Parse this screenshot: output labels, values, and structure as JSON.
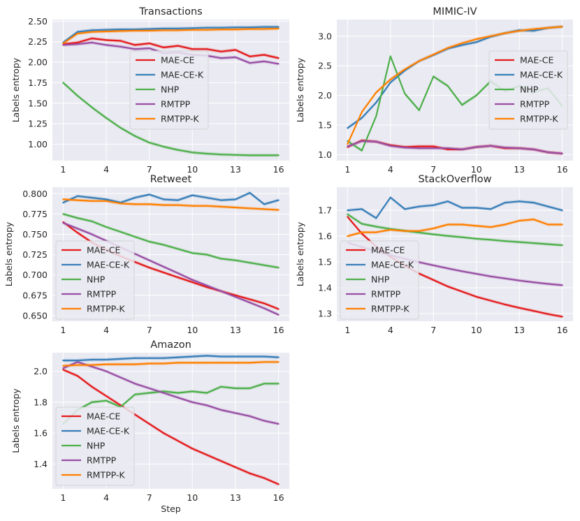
{
  "figure": {
    "palette": {
      "MAE-CE": "#e41a1c",
      "MAE-CE-K": "#377eb8",
      "NHP": "#4daf4a",
      "RMTPP": "#984ea3",
      "RMTPP-K": "#ff7f00"
    },
    "background": "#eaeaf2"
  },
  "chart_data": [
    {
      "type": "line",
      "title": "Transactions",
      "xlabel": "",
      "ylabel": "Labels entropy",
      "xlim": [
        0.25,
        16.75
      ],
      "ylim": [
        0.8,
        2.52
      ],
      "x": [
        1,
        2,
        3,
        4,
        5,
        6,
        7,
        8,
        9,
        10,
        11,
        12,
        13,
        14,
        15,
        16
      ],
      "xticks": [
        "1",
        "4",
        "7",
        "10",
        "13",
        "16"
      ],
      "xtick_values": [
        1,
        4,
        7,
        10,
        13,
        16
      ],
      "yticks": [
        "1.00",
        "1.25",
        "1.50",
        "1.75",
        "2.00",
        "2.25",
        "2.50"
      ],
      "ytick_values": [
        1.0,
        1.25,
        1.5,
        1.75,
        2.0,
        2.25,
        2.5
      ],
      "legend": "center",
      "series": [
        {
          "name": "MAE-CE",
          "values": [
            2.22,
            2.24,
            2.29,
            2.27,
            2.26,
            2.21,
            2.23,
            2.18,
            2.2,
            2.16,
            2.16,
            2.13,
            2.15,
            2.07,
            2.09,
            2.05
          ]
        },
        {
          "name": "MAE-CE-K",
          "values": [
            2.24,
            2.37,
            2.39,
            2.395,
            2.4,
            2.4,
            2.405,
            2.41,
            2.41,
            2.415,
            2.42,
            2.42,
            2.425,
            2.425,
            2.43,
            2.43
          ]
        },
        {
          "name": "NHP",
          "values": [
            1.75,
            1.59,
            1.45,
            1.32,
            1.2,
            1.1,
            1.02,
            0.97,
            0.93,
            0.9,
            0.885,
            0.875,
            0.87,
            0.865,
            0.865,
            0.865
          ]
        },
        {
          "name": "RMTPP",
          "values": [
            2.21,
            2.22,
            2.24,
            2.21,
            2.19,
            2.16,
            2.17,
            2.11,
            2.12,
            2.09,
            2.08,
            2.05,
            2.06,
            1.99,
            2.01,
            1.98
          ]
        },
        {
          "name": "RMTPP-K",
          "values": [
            2.23,
            2.35,
            2.37,
            2.375,
            2.38,
            2.385,
            2.385,
            2.39,
            2.39,
            2.395,
            2.395,
            2.4,
            2.4,
            2.405,
            2.405,
            2.41
          ]
        }
      ]
    },
    {
      "type": "line",
      "title": "MIMIC-IV",
      "xlabel": "",
      "ylabel": "Labels entropy",
      "xlim": [
        0.25,
        16.75
      ],
      "ylim": [
        0.9,
        3.28
      ],
      "x": [
        1,
        2,
        3,
        4,
        5,
        6,
        7,
        8,
        9,
        10,
        11,
        12,
        13,
        14,
        15,
        16
      ],
      "xticks": [
        "1",
        "4",
        "7",
        "10",
        "13",
        "16"
      ],
      "xtick_values": [
        1,
        4,
        7,
        10,
        13,
        16
      ],
      "yticks": [
        "1.0",
        "1.5",
        "2.0",
        "2.5",
        "3.0"
      ],
      "ytick_values": [
        1.0,
        1.5,
        2.0,
        2.5,
        3.0
      ],
      "legend": "center right",
      "series": [
        {
          "name": "MAE-CE",
          "values": [
            1.13,
            1.24,
            1.22,
            1.16,
            1.13,
            1.14,
            1.14,
            1.09,
            1.09,
            1.13,
            1.15,
            1.11,
            1.11,
            1.09,
            1.04,
            1.02
          ]
        },
        {
          "name": "MAE-CE-K",
          "values": [
            1.45,
            1.62,
            1.88,
            2.22,
            2.42,
            2.58,
            2.68,
            2.79,
            2.85,
            2.9,
            2.99,
            3.05,
            3.1,
            3.09,
            3.14,
            3.16
          ]
        },
        {
          "name": "NHP",
          "values": [
            1.23,
            1.07,
            1.65,
            2.66,
            2.03,
            1.75,
            2.32,
            2.16,
            1.84,
            2.0,
            2.24,
            2.07,
            2.16,
            2.06,
            2.12,
            1.82
          ]
        },
        {
          "name": "RMTPP",
          "values": [
            1.14,
            1.23,
            1.22,
            1.15,
            1.12,
            1.11,
            1.11,
            1.11,
            1.09,
            1.13,
            1.15,
            1.12,
            1.11,
            1.09,
            1.04,
            1.02
          ]
        },
        {
          "name": "RMTPP-K",
          "values": [
            1.18,
            1.72,
            2.05,
            2.27,
            2.44,
            2.58,
            2.69,
            2.8,
            2.88,
            2.95,
            3.0,
            3.05,
            3.09,
            3.12,
            3.14,
            3.16
          ]
        }
      ]
    },
    {
      "type": "line",
      "title": "Retweet",
      "xlabel": "",
      "ylabel": "Labels entropy",
      "xlim": [
        0.25,
        16.75
      ],
      "ylim": [
        0.643,
        0.808
      ],
      "x": [
        1,
        2,
        3,
        4,
        5,
        6,
        7,
        8,
        9,
        10,
        11,
        12,
        13,
        14,
        15,
        16
      ],
      "xticks": [
        "1",
        "4",
        "7",
        "10",
        "13",
        "16"
      ],
      "xtick_values": [
        1,
        4,
        7,
        10,
        13,
        16
      ],
      "yticks": [
        "0.650",
        "0.675",
        "0.700",
        "0.725",
        "0.750",
        "0.775",
        "0.800"
      ],
      "ytick_values": [
        0.65,
        0.675,
        0.7,
        0.725,
        0.75,
        0.775,
        0.8
      ],
      "legend": "lower left",
      "series": [
        {
          "name": "MAE-CE",
          "values": [
            0.765,
            0.752,
            0.74,
            0.731,
            0.723,
            0.716,
            0.709,
            0.703,
            0.697,
            0.691,
            0.685,
            0.68,
            0.675,
            0.67,
            0.665,
            0.658
          ]
        },
        {
          "name": "MAE-CE-K",
          "values": [
            0.789,
            0.797,
            0.795,
            0.793,
            0.789,
            0.795,
            0.799,
            0.793,
            0.792,
            0.798,
            0.795,
            0.792,
            0.793,
            0.801,
            0.787,
            0.792
          ]
        },
        {
          "name": "NHP",
          "values": [
            0.775,
            0.77,
            0.766,
            0.759,
            0.753,
            0.747,
            0.741,
            0.737,
            0.732,
            0.727,
            0.725,
            0.72,
            0.718,
            0.715,
            0.712,
            0.709
          ]
        },
        {
          "name": "RMTPP",
          "values": [
            0.764,
            0.757,
            0.75,
            0.742,
            0.734,
            0.726,
            0.718,
            0.71,
            0.702,
            0.694,
            0.687,
            0.68,
            0.673,
            0.666,
            0.659,
            0.651
          ]
        },
        {
          "name": "RMTPP-K",
          "values": [
            0.793,
            0.792,
            0.791,
            0.791,
            0.788,
            0.787,
            0.787,
            0.786,
            0.786,
            0.785,
            0.785,
            0.784,
            0.783,
            0.782,
            0.781,
            0.78
          ]
        }
      ]
    },
    {
      "type": "line",
      "title": "StackOverflow",
      "xlabel": "",
      "ylabel": "Labels entropy",
      "xlim": [
        0.25,
        16.75
      ],
      "ylim": [
        1.27,
        1.79
      ],
      "x": [
        1,
        2,
        3,
        4,
        5,
        6,
        7,
        8,
        9,
        10,
        11,
        12,
        13,
        14,
        15,
        16
      ],
      "xticks": [
        "1",
        "4",
        "7",
        "10",
        "13",
        "16"
      ],
      "xtick_values": [
        1,
        4,
        7,
        10,
        13,
        16
      ],
      "yticks": [
        "1.3",
        "1.4",
        "1.5",
        "1.6",
        "1.7"
      ],
      "ytick_values": [
        1.3,
        1.4,
        1.5,
        1.6,
        1.7
      ],
      "legend": "lower left",
      "series": [
        {
          "name": "MAE-CE",
          "values": [
            1.675,
            1.61,
            1.56,
            1.52,
            1.485,
            1.455,
            1.43,
            1.405,
            1.385,
            1.365,
            1.35,
            1.335,
            1.322,
            1.31,
            1.298,
            1.288
          ]
        },
        {
          "name": "MAE-CE-K",
          "values": [
            1.7,
            1.705,
            1.67,
            1.75,
            1.705,
            1.715,
            1.72,
            1.735,
            1.71,
            1.71,
            1.705,
            1.73,
            1.735,
            1.73,
            1.715,
            1.7
          ]
        },
        {
          "name": "NHP",
          "values": [
            1.685,
            1.648,
            1.637,
            1.628,
            1.621,
            1.614,
            1.607,
            1.601,
            1.596,
            1.59,
            1.586,
            1.581,
            1.577,
            1.573,
            1.569,
            1.565
          ]
        },
        {
          "name": "RMTPP",
          "values": [
            1.575,
            1.558,
            1.541,
            1.526,
            1.512,
            1.499,
            1.487,
            1.475,
            1.464,
            1.454,
            1.444,
            1.436,
            1.428,
            1.421,
            1.415,
            1.41
          ]
        },
        {
          "name": "RMTPP-K",
          "values": [
            1.6,
            1.615,
            1.615,
            1.625,
            1.62,
            1.62,
            1.63,
            1.645,
            1.645,
            1.64,
            1.635,
            1.645,
            1.66,
            1.665,
            1.645,
            1.645
          ]
        }
      ]
    },
    {
      "type": "line",
      "title": "Amazon",
      "xlabel": "Step",
      "ylabel": "Labels entropy",
      "xlim": [
        0.25,
        16.75
      ],
      "ylim": [
        1.24,
        2.12
      ],
      "x": [
        1,
        2,
        3,
        4,
        5,
        6,
        7,
        8,
        9,
        10,
        11,
        12,
        13,
        14,
        15,
        16
      ],
      "xticks": [
        "1",
        "4",
        "7",
        "10",
        "13",
        "16"
      ],
      "xtick_values": [
        1,
        4,
        7,
        10,
        13,
        16
      ],
      "yticks": [
        "1.4",
        "1.6",
        "1.8",
        "2.0"
      ],
      "ytick_values": [
        1.4,
        1.6,
        1.8,
        2.0
      ],
      "legend": "lower left",
      "series": [
        {
          "name": "MAE-CE",
          "values": [
            2.01,
            1.97,
            1.9,
            1.84,
            1.78,
            1.72,
            1.66,
            1.6,
            1.55,
            1.5,
            1.46,
            1.42,
            1.38,
            1.34,
            1.31,
            1.27
          ]
        },
        {
          "name": "MAE-CE-K",
          "values": [
            2.07,
            2.07,
            2.075,
            2.075,
            2.08,
            2.085,
            2.085,
            2.085,
            2.09,
            2.095,
            2.1,
            2.095,
            2.095,
            2.095,
            2.095,
            2.09
          ]
        },
        {
          "name": "NHP",
          "values": [
            1.66,
            1.75,
            1.8,
            1.81,
            1.77,
            1.85,
            1.86,
            1.87,
            1.86,
            1.87,
            1.86,
            1.9,
            1.89,
            1.89,
            1.92,
            1.92
          ]
        },
        {
          "name": "RMTPP",
          "values": [
            2.02,
            2.06,
            2.03,
            2.0,
            1.96,
            1.92,
            1.89,
            1.86,
            1.83,
            1.8,
            1.78,
            1.75,
            1.73,
            1.71,
            1.68,
            1.66
          ]
        },
        {
          "name": "RMTPP-K",
          "values": [
            2.035,
            2.04,
            2.04,
            2.045,
            2.045,
            2.045,
            2.05,
            2.05,
            2.055,
            2.055,
            2.055,
            2.055,
            2.055,
            2.055,
            2.06,
            2.06
          ]
        }
      ]
    }
  ]
}
